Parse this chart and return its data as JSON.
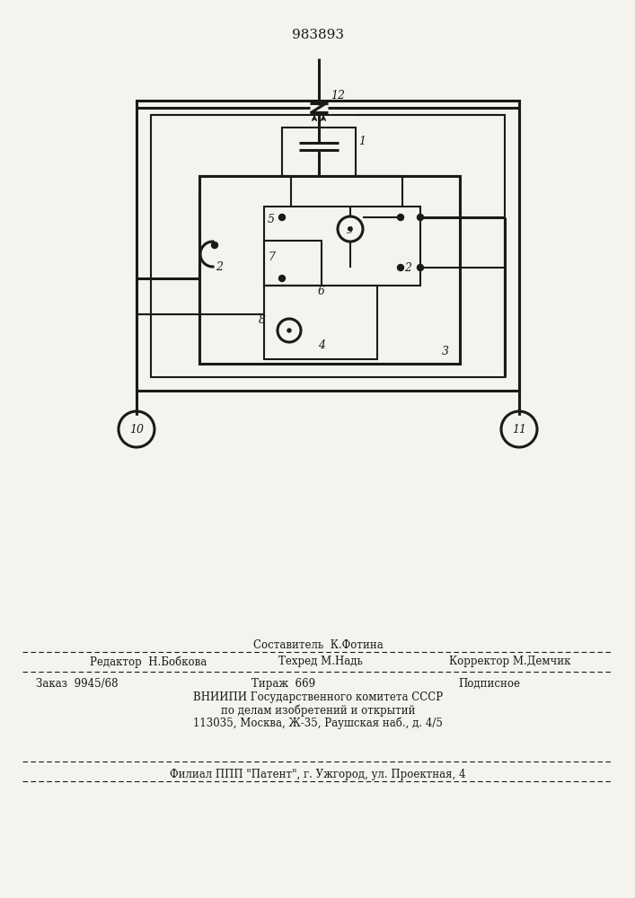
{
  "title": "983893",
  "bg_color": "#f5f3ee",
  "line_color": "#1a1a1a",
  "lw_thin": 1.5,
  "lw_thick": 2.2,
  "footer": {
    "line1": "Составитель  К.Фотина",
    "line2": "Редактор  Н.Бобкова",
    "line2b": "Техред М.Надь",
    "line2c": "Корректор М.Демчик",
    "line3": "Заказ  9945/68",
    "line3b": "Тираж  669",
    "line3c": "Подписное",
    "line4": "ВНИИПИ Государственного комитета СССР",
    "line5": "по делам изобретений и открытий",
    "line6": "113035, Москва, Ж-35, Раушская наб., д. 4/5",
    "line7": "Филиал ППП \"Патент\", г. Ужгород, ул. Проектная, 4"
  }
}
